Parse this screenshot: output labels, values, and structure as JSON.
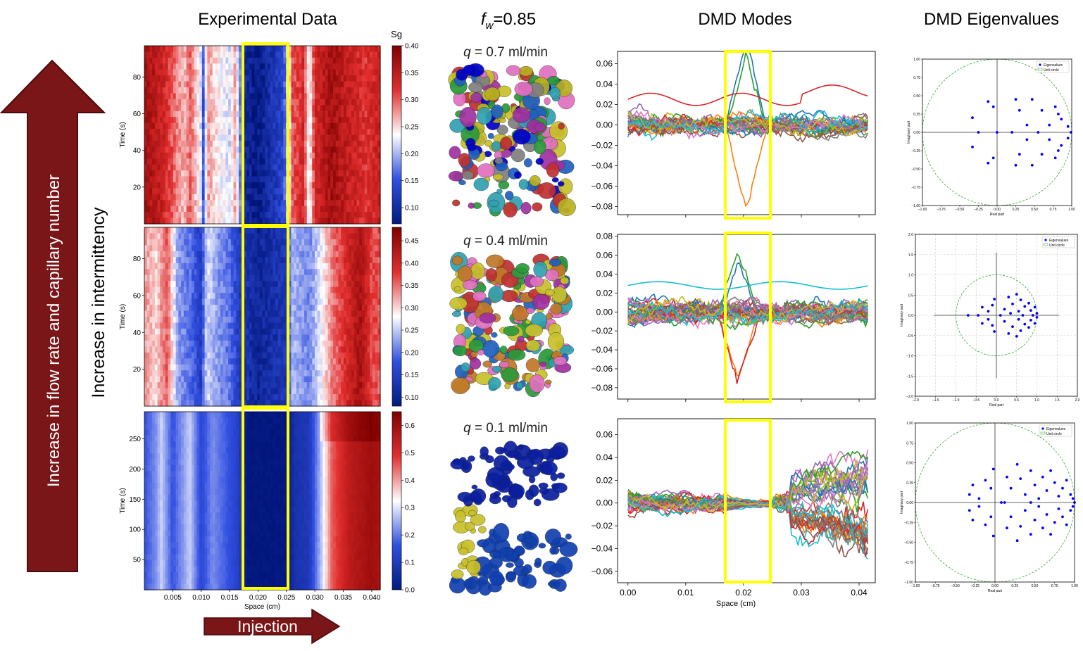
{
  "colors": {
    "arrow_fill": "#7a1618",
    "arrow_stroke": "#4a0c0e",
    "highlight": "#ffff00",
    "heatmap_low": "#001a80",
    "heatmap_mid": "#ffffff",
    "heatmap_high": "#b00000",
    "circle": "#4caf50",
    "eig_point": "#0000ff"
  },
  "headers": {
    "experimental": "Experimental Data",
    "fw_symbol": "f",
    "fw_sub": "w",
    "fw_value": "=0.85",
    "modes": "DMD Modes",
    "eigen": "DMD Eigenvalues"
  },
  "side": {
    "big_arrow_label": "Increase in flow rate and capillary number",
    "intermittency_label": "Increase in intermittency",
    "injection_label": "Injection"
  },
  "flow_rates": [
    {
      "q": "q",
      "value": " = 0.7 ml/min"
    },
    {
      "q": "q",
      "value": " = 0.4 ml/min"
    },
    {
      "q": "q",
      "value": " = 0.1 ml/min"
    }
  ],
  "chart_data": [
    {
      "type": "heatmap",
      "name": "experimental-0.7",
      "colorbar_title": "Sg",
      "ylabel": "Time (s)",
      "xlabel": "",
      "xlim": [
        0.0,
        0.0415
      ],
      "ylim": [
        0,
        97
      ],
      "yticks": [
        20,
        40,
        60,
        80
      ],
      "cbar_ticks": [
        0.1,
        0.15,
        0.2,
        0.25,
        0.3,
        0.35,
        0.4
      ],
      "cbar_labels": [
        "0.10",
        "0.15",
        "0.20",
        "0.25",
        "0.30",
        "0.35",
        "0.40"
      ],
      "cbar_range": [
        0.07,
        0.4
      ],
      "profile": [
        [
          0.0,
          0.37
        ],
        [
          0.003,
          0.34
        ],
        [
          0.005,
          0.3
        ],
        [
          0.007,
          0.26
        ],
        [
          0.008,
          0.3
        ],
        [
          0.01,
          0.22
        ],
        [
          0.0105,
          0.13
        ],
        [
          0.011,
          0.28
        ],
        [
          0.013,
          0.24
        ],
        [
          0.015,
          0.22
        ],
        [
          0.016,
          0.27
        ],
        [
          0.0175,
          0.1
        ],
        [
          0.02,
          0.08
        ],
        [
          0.0245,
          0.14
        ],
        [
          0.026,
          0.3
        ],
        [
          0.028,
          0.33
        ],
        [
          0.029,
          0.22
        ],
        [
          0.03,
          0.33
        ],
        [
          0.033,
          0.37
        ],
        [
          0.036,
          0.34
        ],
        [
          0.039,
          0.32
        ],
        [
          0.0415,
          0.34
        ]
      ]
    },
    {
      "type": "heatmap",
      "name": "experimental-0.4",
      "colorbar_title": "",
      "ylabel": "Time (s)",
      "xlabel": "",
      "xlim": [
        0.0,
        0.0415
      ],
      "ylim": [
        0,
        97
      ],
      "yticks": [
        20,
        40,
        60,
        80
      ],
      "cbar_ticks": [
        0.1,
        0.15,
        0.2,
        0.25,
        0.3,
        0.35,
        0.4,
        0.45
      ],
      "cbar_labels": [
        "0.10",
        "0.15",
        "0.20",
        "0.25",
        "0.30",
        "0.35",
        "0.40",
        "0.45"
      ],
      "cbar_range": [
        0.08,
        0.48
      ],
      "profile": [
        [
          0.0,
          0.33
        ],
        [
          0.002,
          0.3
        ],
        [
          0.004,
          0.36
        ],
        [
          0.006,
          0.22
        ],
        [
          0.008,
          0.2
        ],
        [
          0.01,
          0.15
        ],
        [
          0.011,
          0.26
        ],
        [
          0.013,
          0.22
        ],
        [
          0.015,
          0.2
        ],
        [
          0.017,
          0.14
        ],
        [
          0.02,
          0.11
        ],
        [
          0.025,
          0.14
        ],
        [
          0.026,
          0.24
        ],
        [
          0.029,
          0.21
        ],
        [
          0.031,
          0.27
        ],
        [
          0.033,
          0.34
        ],
        [
          0.036,
          0.4
        ],
        [
          0.038,
          0.44
        ],
        [
          0.04,
          0.37
        ],
        [
          0.0415,
          0.36
        ]
      ]
    },
    {
      "type": "heatmap",
      "name": "experimental-0.1",
      "colorbar_title": "",
      "ylabel": "Time (s)",
      "xlabel": "Space (cm)",
      "xlim": [
        0.0,
        0.0415
      ],
      "ylim": [
        0,
        295
      ],
      "yticks": [
        50,
        100,
        150,
        200,
        250
      ],
      "xticks": [
        0.005,
        0.01,
        0.015,
        0.02,
        0.025,
        0.03,
        0.035,
        0.04
      ],
      "xticklabels": [
        "0.005",
        "0.010",
        "0.015",
        "0.020",
        "0.025",
        "0.030",
        "0.035",
        "0.040"
      ],
      "cbar_ticks": [
        0.0,
        0.1,
        0.2,
        0.3,
        0.4,
        0.5,
        0.6
      ],
      "cbar_labels": [
        "0.0",
        "0.1",
        "0.2",
        "0.3",
        "0.4",
        "0.5",
        "0.6"
      ],
      "cbar_range": [
        0.0,
        0.65
      ],
      "profile": [
        [
          0.0,
          0.16
        ],
        [
          0.002,
          0.22
        ],
        [
          0.003,
          0.28
        ],
        [
          0.005,
          0.16
        ],
        [
          0.007,
          0.24
        ],
        [
          0.008,
          0.28
        ],
        [
          0.01,
          0.14
        ],
        [
          0.012,
          0.22
        ],
        [
          0.014,
          0.18
        ],
        [
          0.0165,
          0.12
        ],
        [
          0.018,
          0.01
        ],
        [
          0.025,
          0.01
        ],
        [
          0.0265,
          0.08
        ],
        [
          0.029,
          0.1
        ],
        [
          0.031,
          0.26
        ],
        [
          0.033,
          0.45
        ],
        [
          0.036,
          0.55
        ],
        [
          0.04,
          0.6
        ],
        [
          0.0415,
          0.58
        ]
      ]
    },
    {
      "type": "line",
      "name": "dmd-modes-0.7",
      "xlabel": "",
      "ylabel": "",
      "xlim": [
        -0.0018,
        0.0428
      ],
      "ylim": [
        -0.088,
        0.072
      ],
      "yticks": [
        -0.08,
        -0.06,
        -0.04,
        -0.02,
        0.0,
        0.02,
        0.04,
        0.06
      ],
      "yticklabels": [
        "−0.08",
        "−0.06",
        "−0.04",
        "−0.02",
        "0.00",
        "0.02",
        "0.04",
        "0.06"
      ],
      "n_series": 30,
      "spread_left": 0.016,
      "spread_right": 0.016,
      "spike_center": 0.0205,
      "spike_amplitude": 0.075,
      "offset_line": 0.025
    },
    {
      "type": "line",
      "name": "dmd-modes-0.4",
      "xlabel": "",
      "ylabel": "",
      "xlim": [
        -0.0018,
        0.0428
      ],
      "ylim": [
        -0.092,
        0.082
      ],
      "yticks": [
        -0.08,
        -0.06,
        -0.04,
        -0.02,
        0.0,
        0.02,
        0.04,
        0.06,
        0.08
      ],
      "yticklabels": [
        "−0.08",
        "−0.06",
        "−0.04",
        "−0.02",
        "0.00",
        "0.02",
        "0.04",
        "0.06",
        "0.08"
      ],
      "n_series": 40,
      "spread_left": 0.018,
      "spread_right": 0.016,
      "spike_center": 0.019,
      "spike_amplitude": 0.07,
      "offset_line": 0.028
    },
    {
      "type": "line",
      "name": "dmd-modes-0.1",
      "xlabel": "Space (cm)",
      "ylabel": "",
      "xlim": [
        -0.0018,
        0.0428
      ],
      "ylim": [
        -0.07,
        0.074
      ],
      "yticks": [
        -0.06,
        -0.04,
        -0.02,
        0.0,
        0.02,
        0.04,
        0.06
      ],
      "yticklabels": [
        "−0.06",
        "−0.04",
        "−0.02",
        "0.00",
        "0.02",
        "0.04",
        "0.06"
      ],
      "xticks": [
        0.0,
        0.01,
        0.02,
        0.03,
        0.04
      ],
      "xticklabels": [
        "0.00",
        "0.01",
        "0.02",
        "0.03",
        "0.04"
      ],
      "n_series": 40,
      "spread_left": 0.012,
      "spread_right": 0.035,
      "spike_center": 0.021,
      "spike_amplitude": 0.0,
      "offset_line": 0.0
    },
    {
      "type": "scatter",
      "name": "dmd-eigen-0.7",
      "xlabel": "Real part",
      "ylabel": "Imaginary part",
      "xlim": [
        -1.0,
        1.0
      ],
      "ylim": [
        -1.0,
        1.0
      ],
      "ticks": [
        -1.0,
        -0.75,
        -0.5,
        -0.25,
        0.0,
        0.25,
        0.5,
        0.75,
        1.0
      ],
      "ticklabels": [
        "−1.00",
        "−0.75",
        "−0.50",
        "−0.25",
        "0.00",
        "0.25",
        "0.50",
        "0.75",
        "1.00"
      ],
      "show_grid": false,
      "legend": [
        "Eigenvalues",
        "Unit circle"
      ],
      "points": [
        [
          -0.33,
          0.2
        ],
        [
          -0.33,
          -0.2
        ],
        [
          -0.25,
          0.0
        ],
        [
          -0.12,
          0.42
        ],
        [
          -0.12,
          -0.42
        ],
        [
          -0.05,
          0.35
        ],
        [
          -0.05,
          -0.35
        ],
        [
          0.0,
          0.0
        ],
        [
          0.2,
          0.0
        ],
        [
          0.25,
          0.45
        ],
        [
          0.25,
          -0.45
        ],
        [
          0.3,
          0.3
        ],
        [
          0.3,
          -0.3
        ],
        [
          0.4,
          0.1
        ],
        [
          0.4,
          -0.1
        ],
        [
          0.47,
          0.45
        ],
        [
          0.47,
          -0.45
        ],
        [
          0.55,
          0.0
        ],
        [
          0.6,
          0.3
        ],
        [
          0.6,
          -0.3
        ],
        [
          0.78,
          0.35
        ],
        [
          0.78,
          -0.35
        ],
        [
          0.82,
          0.25
        ],
        [
          0.82,
          -0.25
        ],
        [
          0.86,
          0.18
        ],
        [
          0.86,
          -0.18
        ],
        [
          0.7,
          0.1
        ],
        [
          0.7,
          -0.1
        ],
        [
          0.95,
          0.08
        ],
        [
          0.95,
          -0.08
        ],
        [
          0.99,
          0.0
        ]
      ]
    },
    {
      "type": "scatter",
      "name": "dmd-eigen-0.4",
      "xlabel": "Real part",
      "ylabel": "Imaginary part",
      "xlim": [
        -2.0,
        2.0
      ],
      "ylim": [
        -2.0,
        2.0
      ],
      "ticks": [
        -2.0,
        -1.5,
        -1.0,
        -0.5,
        0.0,
        0.5,
        1.0,
        1.5,
        2.0
      ],
      "ticklabels": [
        "−2.0",
        "−1.5",
        "−1.0",
        "−0.5",
        "0.0",
        "0.5",
        "1.0",
        "1.5",
        "2.0"
      ],
      "show_grid": true,
      "legend": [
        "Eigenvalues",
        "Unit circle"
      ],
      "points": [
        [
          -0.7,
          0.0
        ],
        [
          -0.45,
          0.0
        ],
        [
          -0.35,
          0.2
        ],
        [
          -0.35,
          -0.2
        ],
        [
          -0.2,
          0.1
        ],
        [
          -0.2,
          -0.1
        ],
        [
          -0.05,
          0.4
        ],
        [
          -0.05,
          -0.4
        ],
        [
          -0.1,
          0.25
        ],
        [
          -0.1,
          -0.25
        ],
        [
          0.1,
          0.0
        ],
        [
          0.2,
          0.15
        ],
        [
          0.2,
          -0.15
        ],
        [
          0.3,
          0.45
        ],
        [
          0.3,
          -0.45
        ],
        [
          0.4,
          0.28
        ],
        [
          0.4,
          -0.28
        ],
        [
          0.5,
          0.52
        ],
        [
          0.5,
          -0.52
        ],
        [
          0.55,
          0.1
        ],
        [
          0.55,
          -0.1
        ],
        [
          0.6,
          0.38
        ],
        [
          0.6,
          -0.38
        ],
        [
          0.7,
          0.22
        ],
        [
          0.7,
          -0.22
        ],
        [
          0.8,
          0.3
        ],
        [
          0.8,
          -0.3
        ],
        [
          0.85,
          0.12
        ],
        [
          0.85,
          -0.12
        ],
        [
          0.95,
          0.2
        ],
        [
          0.95,
          -0.2
        ],
        [
          1.0,
          0.05
        ],
        [
          1.0,
          -0.05
        ],
        [
          0.9,
          0.0
        ],
        [
          0.65,
          0.0
        ],
        [
          0.35,
          0.05
        ]
      ]
    },
    {
      "type": "scatter",
      "name": "dmd-eigen-0.1",
      "xlabel": "Real part",
      "ylabel": "Imaginary part",
      "xlim": [
        -1.0,
        1.0
      ],
      "ylim": [
        -1.0,
        1.0
      ],
      "ticks": [
        -1.0,
        -0.75,
        -0.5,
        -0.25,
        0.0,
        0.25,
        0.5,
        0.75,
        1.0
      ],
      "ticklabels": [
        "−1.00",
        "−0.75",
        "−0.50",
        "−0.25",
        "0.00",
        "0.25",
        "0.50",
        "0.75",
        "1.00"
      ],
      "show_grid": false,
      "legend": [
        "Eigenvalues",
        "Unit circle"
      ],
      "points": [
        [
          -0.32,
          0.1
        ],
        [
          -0.32,
          -0.1
        ],
        [
          -0.28,
          0.22
        ],
        [
          -0.28,
          -0.22
        ],
        [
          -0.2,
          0.05
        ],
        [
          -0.2,
          -0.05
        ],
        [
          -0.12,
          0.28
        ],
        [
          -0.12,
          -0.28
        ],
        [
          -0.05,
          0.18
        ],
        [
          -0.05,
          -0.18
        ],
        [
          -0.02,
          0.42
        ],
        [
          -0.02,
          -0.42
        ],
        [
          0.08,
          0.0
        ],
        [
          0.15,
          0.32
        ],
        [
          0.15,
          -0.32
        ],
        [
          0.2,
          0.18
        ],
        [
          0.2,
          -0.18
        ],
        [
          0.28,
          0.48
        ],
        [
          0.28,
          -0.48
        ],
        [
          0.32,
          0.3
        ],
        [
          0.32,
          -0.3
        ],
        [
          0.38,
          0.1
        ],
        [
          0.38,
          -0.1
        ],
        [
          0.45,
          0.4
        ],
        [
          0.45,
          -0.4
        ],
        [
          0.5,
          0.22
        ],
        [
          0.5,
          -0.22
        ],
        [
          0.55,
          0.05
        ],
        [
          0.55,
          -0.05
        ],
        [
          0.6,
          0.32
        ],
        [
          0.6,
          -0.32
        ],
        [
          0.65,
          0.15
        ],
        [
          0.65,
          -0.15
        ],
        [
          0.7,
          0.4
        ],
        [
          0.7,
          -0.4
        ],
        [
          0.75,
          0.25
        ],
        [
          0.75,
          -0.25
        ],
        [
          0.8,
          0.08
        ],
        [
          0.8,
          -0.08
        ],
        [
          0.85,
          0.18
        ],
        [
          0.85,
          -0.18
        ],
        [
          0.9,
          0.28
        ],
        [
          0.9,
          -0.28
        ],
        [
          0.95,
          0.1
        ],
        [
          0.95,
          -0.1
        ],
        [
          0.98,
          0.05
        ],
        [
          0.98,
          -0.05
        ],
        [
          1.0,
          0.0
        ],
        [
          0.12,
          0.0
        ],
        [
          0.45,
          0.0
        ]
      ]
    }
  ]
}
